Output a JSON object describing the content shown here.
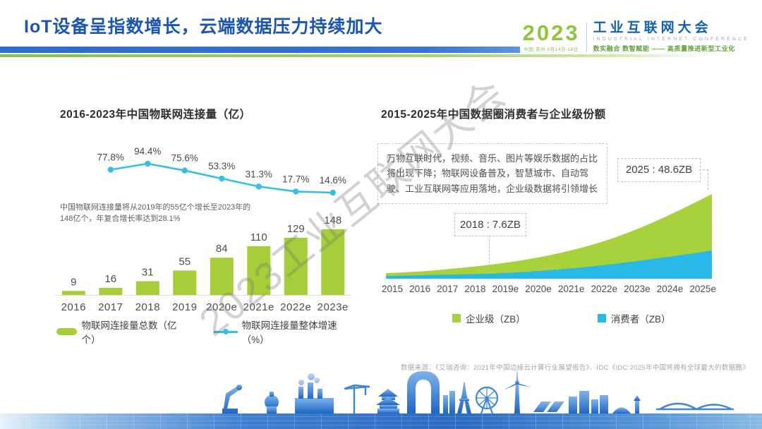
{
  "slide": {
    "title": "IoT设备呈指数增长，云端数据压力持续加大",
    "watermark": "2023工业互联网大会",
    "source": "数据来源：《艾瑞咨询：2021年中国边缘云计算行业展望报告》、IDC《IDC:2025年中国将拥有全球最大的数据圈》"
  },
  "logo": {
    "year": "2023",
    "sub": "中国·苏州 8月14日-16日",
    "name": "工业互联网大会",
    "name_en": "INDUSTRIAL INTERNET CONFERENCE",
    "slogan": "数实融合  数智赋能 —— 高质量推进新型工业化"
  },
  "colors": {
    "title_blue": "#1a55b2",
    "bar_green": "#a5ce39",
    "line_cyan": "#38bde4",
    "area_green": "#a8d23c",
    "area_blue": "#27b8e8",
    "axis_text": "#4d4d4d"
  },
  "chart_data": [
    {
      "type": "bar",
      "title": "2016-2023年中国物联网连接量（亿）",
      "categories": [
        "2016",
        "2017",
        "2018",
        "2019",
        "2020e",
        "2021e",
        "2022e",
        "2023e"
      ],
      "series": [
        {
          "name": "物联网连接量总数（亿个）",
          "type": "bar",
          "color": "#a5ce39",
          "values": [
            9,
            16,
            31,
            55,
            84,
            110,
            129,
            148
          ]
        },
        {
          "name": "物联网连接量整体增速（%）",
          "type": "line",
          "color": "#38bde4",
          "values": [
            null,
            77.8,
            94.4,
            75.6,
            53.3,
            31.3,
            17.7,
            14.6
          ]
        }
      ],
      "annotation": "中国物联网连接量将从2019年的55亿个增长至2023年的148亿个，年复合增长率达到28.1%",
      "legend_position": "bottom",
      "grid": false
    },
    {
      "type": "area",
      "title": "2015-2025年中国数据圈消费者与企业级份额",
      "stacked": true,
      "categories": [
        "2015",
        "2016",
        "2017",
        "2018",
        "2019e",
        "2020e",
        "2021e",
        "2022e",
        "2023e",
        "2024e",
        "2025e"
      ],
      "series": [
        {
          "name": "消费者（ZB）",
          "color": "#27b8e8",
          "values": [
            1.6,
            2.0,
            2.4,
            2.8,
            3.6,
            4.9,
            6.5,
            8.5,
            10.9,
            13.4,
            16.2
          ]
        },
        {
          "name": "企业级（ZB）",
          "color": "#a8d23c",
          "values": [
            1.6,
            2.1,
            3.3,
            4.8,
            6.5,
            8.5,
            11.3,
            15.0,
            19.9,
            25.9,
            32.4
          ]
        }
      ],
      "callouts": [
        {
          "label": "2018 : 7.6ZB",
          "x": "2018",
          "total": 7.6
        },
        {
          "label": "2025 : 48.6ZB",
          "x": "2025e",
          "total": 48.6
        }
      ],
      "note": "万物互联时代，视频、音乐、图片等娱乐数据的占比将出现下降；物联网设备普及，智慧城市、自动驾驶、工业互联网等应用落地，企业级数据将引领增长",
      "legend_position": "bottom",
      "grid": false
    }
  ]
}
